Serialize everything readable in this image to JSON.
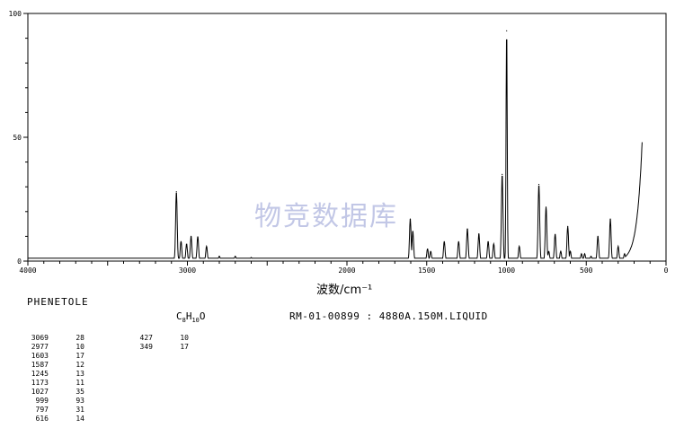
{
  "chart_data": {
    "type": "line",
    "xlabel": "波数/cm⁻¹",
    "ylabel": "",
    "xlim": [
      4000,
      0
    ],
    "ylim": [
      0,
      100
    ],
    "x_ticks": [
      "4000",
      "3000",
      "2000",
      "1500",
      "1000",
      "500",
      "0"
    ],
    "y_ticks": [
      "100",
      "50",
      "0"
    ],
    "grid": false,
    "peaks": [
      {
        "x": 3069,
        "y": 28
      },
      {
        "x": 2977,
        "y": 10
      },
      {
        "x": 1603,
        "y": 17
      },
      {
        "x": 1587,
        "y": 12
      },
      {
        "x": 1245,
        "y": 13
      },
      {
        "x": 1173,
        "y": 11
      },
      {
        "x": 1027,
        "y": 35
      },
      {
        "x": 999,
        "y": 93
      },
      {
        "x": 797,
        "y": 31
      },
      {
        "x": 616,
        "y": 14
      },
      {
        "x": 427,
        "y": 10
      },
      {
        "x": 349,
        "y": 17
      }
    ]
  },
  "labels": {
    "compound": "PHENETOLE",
    "formula_c": "C",
    "formula_c_n": "8",
    "formula_h": "H",
    "formula_h_n": "10",
    "formula_o": "O",
    "record": "RM-01-00899 : 4880A.150M.LIQUID",
    "watermark": "物竞数据库"
  },
  "peak_table": {
    "col1": [
      {
        "wn": "3069",
        "it": "28"
      },
      {
        "wn": "2977",
        "it": "10"
      },
      {
        "wn": "1603",
        "it": "17"
      },
      {
        "wn": "1587",
        "it": "12"
      },
      {
        "wn": "1245",
        "it": "13"
      },
      {
        "wn": "1173",
        "it": "11"
      },
      {
        "wn": "1027",
        "it": "35"
      },
      {
        "wn": "999",
        "it": "93"
      },
      {
        "wn": "797",
        "it": "31"
      },
      {
        "wn": "616",
        "it": "14"
      }
    ],
    "col2": [
      {
        "wn": "427",
        "it": "10"
      },
      {
        "wn": "349",
        "it": "17"
      }
    ]
  }
}
